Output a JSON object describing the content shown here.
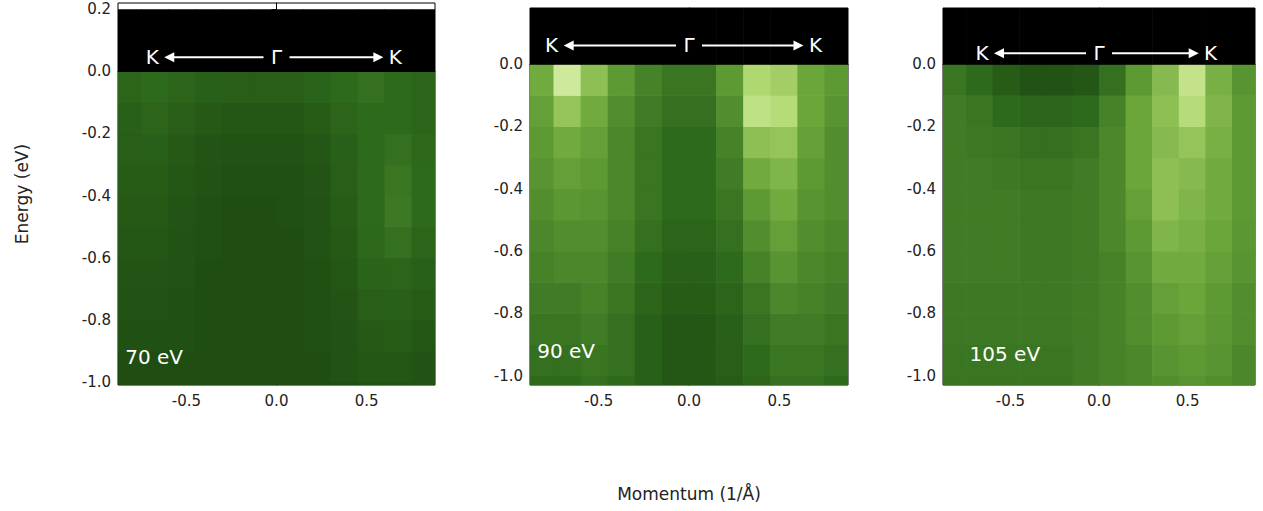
{
  "chart_data": [
    {
      "type": "heatmap",
      "ylabel": "Energy (eV)",
      "xlim": [
        -0.88,
        0.88
      ],
      "xticks": [
        -0.5,
        {
          "value": 0,
          "label": "0.0"
        },
        0.5
      ],
      "ylim": [
        -1.01,
        0.22
      ],
      "yticks": [
        {
          "value": -1,
          "label": "-1.0"
        },
        -0.8,
        -0.6,
        -0.4,
        -0.2,
        {
          "value": 0,
          "label": "0.0"
        },
        0.2
      ],
      "momentum_bins": [
        -0.9,
        -0.75,
        -0.6,
        -0.45,
        -0.3,
        -0.15,
        0,
        0.15,
        0.3,
        0.45,
        0.6,
        0.75,
        0.9
      ],
      "energy_bins": [
        -1.1,
        -1.0,
        -0.9,
        -0.8,
        -0.7,
        -0.6,
        -0.5,
        -0.4,
        -0.3,
        -0.2,
        -0.1,
        0.0,
        0.2
      ],
      "zlim": [
        0,
        100
      ],
      "intensity": [
        [
          28,
          28,
          28,
          28,
          28,
          28,
          28,
          28,
          28,
          30,
          30,
          30
        ],
        [
          28,
          28,
          28,
          28,
          28,
          28,
          28,
          28,
          30,
          32,
          32,
          30
        ],
        [
          29,
          29,
          29,
          28,
          28,
          28,
          28,
          29,
          30,
          33,
          34,
          32
        ],
        [
          30,
          30,
          29,
          28,
          28,
          28,
          28,
          29,
          31,
          35,
          36,
          34
        ],
        [
          31,
          31,
          30,
          28,
          28,
          28,
          28,
          29,
          32,
          37,
          38,
          36
        ],
        [
          32,
          32,
          30,
          29,
          28,
          28,
          28,
          30,
          33,
          39,
          42,
          38
        ],
        [
          33,
          33,
          31,
          29,
          28,
          28,
          29,
          30,
          34,
          40,
          45,
          40
        ],
        [
          34,
          34,
          32,
          30,
          29,
          29,
          29,
          31,
          35,
          40,
          44,
          40
        ],
        [
          35,
          36,
          33,
          31,
          30,
          30,
          30,
          32,
          36,
          40,
          42,
          39
        ],
        [
          36,
          38,
          35,
          33,
          32,
          32,
          32,
          34,
          38,
          40,
          40,
          38
        ],
        [
          38,
          40,
          38,
          36,
          35,
          35,
          35,
          37,
          40,
          42,
          40,
          38
        ],
        [
          0,
          0,
          0,
          0,
          0,
          0,
          0,
          0,
          0,
          0,
          0,
          0
        ]
      ],
      "annotations": [
        {
          "text": "K",
          "x": -0.69,
          "y": 0.045
        },
        {
          "text": "Γ",
          "x": 0,
          "y": 0.045
        },
        {
          "text": "K",
          "x": 0.66,
          "y": 0.045
        },
        {
          "text": "70 eV",
          "x": -0.84,
          "y": -0.92
        }
      ]
    },
    {
      "type": "heatmap",
      "xlabel": "Momentum (1/Å)",
      "xlim": [
        -0.88,
        0.88
      ],
      "xticks": [
        -0.5,
        {
          "value": 0,
          "label": "0.0"
        },
        0.5
      ],
      "ylim": [
        -1.03,
        0.18
      ],
      "yticks": [
        {
          "value": -1,
          "label": "-1.0"
        },
        -0.8,
        -0.6,
        -0.4,
        -0.2,
        {
          "value": 0,
          "label": "0.0"
        }
      ],
      "momentum_bins": [
        -0.9,
        -0.75,
        -0.6,
        -0.45,
        -0.3,
        -0.15,
        0,
        0.15,
        0.3,
        0.45,
        0.6,
        0.75,
        0.9
      ],
      "energy_bins": [
        -1.1,
        -1.0,
        -0.9,
        -0.8,
        -0.7,
        -0.6,
        -0.5,
        -0.4,
        -0.3,
        -0.2,
        -0.1,
        0.0,
        0.2
      ],
      "zlim": [
        0,
        100
      ],
      "intensity": [
        [
          40,
          40,
          42,
          40,
          36,
          32,
          32,
          34,
          38,
          42,
          42,
          40
        ],
        [
          42,
          42,
          44,
          42,
          36,
          32,
          32,
          35,
          40,
          44,
          44,
          42
        ],
        [
          44,
          44,
          46,
          42,
          36,
          32,
          32,
          36,
          42,
          46,
          46,
          44
        ],
        [
          46,
          46,
          48,
          44,
          38,
          34,
          34,
          38,
          44,
          50,
          48,
          46
        ],
        [
          48,
          50,
          50,
          46,
          40,
          36,
          36,
          40,
          48,
          54,
          50,
          48
        ],
        [
          50,
          52,
          52,
          48,
          42,
          38,
          38,
          42,
          52,
          58,
          52,
          50
        ],
        [
          52,
          55,
          54,
          50,
          44,
          40,
          40,
          44,
          56,
          62,
          54,
          52
        ],
        [
          54,
          58,
          56,
          50,
          44,
          40,
          40,
          46,
          62,
          66,
          56,
          52
        ],
        [
          56,
          62,
          58,
          50,
          44,
          40,
          40,
          48,
          70,
          72,
          58,
          52
        ],
        [
          58,
          72,
          62,
          52,
          46,
          42,
          42,
          52,
          85,
          82,
          60,
          54
        ],
        [
          62,
          90,
          70,
          56,
          48,
          44,
          44,
          56,
          80,
          76,
          60,
          56
        ],
        [
          0,
          0,
          0,
          0,
          0,
          0,
          0,
          0,
          0,
          0,
          0,
          0
        ]
      ],
      "annotations": [
        {
          "text": "K",
          "x": -0.76,
          "y": 0.06
        },
        {
          "text": "Γ",
          "x": 0,
          "y": 0.06
        },
        {
          "text": "K",
          "x": 0.7,
          "y": 0.06
        },
        {
          "text": "90 eV",
          "x": -0.84,
          "y": -0.92
        }
      ]
    },
    {
      "type": "heatmap",
      "xlim": [
        -0.88,
        0.88
      ],
      "xticks": [
        -0.5,
        {
          "value": 0,
          "label": "0.0"
        },
        0.5
      ],
      "ylim": [
        -1.03,
        0.18
      ],
      "yticks": [
        {
          "value": -1,
          "label": "-1.0"
        },
        -0.8,
        -0.6,
        -0.4,
        -0.2,
        {
          "value": 0,
          "label": "0.0"
        }
      ],
      "momentum_bins": [
        -0.9,
        -0.75,
        -0.6,
        -0.45,
        -0.3,
        -0.15,
        0,
        0.15,
        0.3,
        0.45,
        0.6,
        0.75,
        0.9
      ],
      "energy_bins": [
        -1.1,
        -1.0,
        -0.9,
        -0.8,
        -0.7,
        -0.6,
        -0.5,
        -0.4,
        -0.3,
        -0.2,
        -0.1,
        0.0,
        0.2
      ],
      "zlim": [
        0,
        100
      ],
      "intensity": [
        [
          44,
          44,
          44,
          44,
          44,
          46,
          48,
          50,
          52,
          54,
          52,
          50
        ],
        [
          44,
          44,
          44,
          44,
          44,
          46,
          48,
          50,
          54,
          56,
          54,
          50
        ],
        [
          45,
          45,
          45,
          45,
          45,
          46,
          48,
          52,
          56,
          58,
          55,
          52
        ],
        [
          45,
          45,
          45,
          45,
          45,
          46,
          48,
          52,
          58,
          60,
          56,
          52
        ],
        [
          46,
          46,
          46,
          45,
          45,
          46,
          48,
          54,
          62,
          62,
          58,
          54
        ],
        [
          46,
          46,
          46,
          45,
          45,
          46,
          50,
          56,
          66,
          64,
          60,
          55
        ],
        [
          46,
          46,
          46,
          45,
          45,
          46,
          50,
          58,
          70,
          66,
          62,
          56
        ],
        [
          46,
          46,
          45,
          44,
          44,
          46,
          50,
          60,
          70,
          68,
          62,
          56
        ],
        [
          46,
          45,
          44,
          42,
          42,
          44,
          50,
          60,
          68,
          72,
          64,
          56
        ],
        [
          46,
          44,
          40,
          38,
          38,
          40,
          48,
          60,
          70,
          82,
          66,
          56
        ],
        [
          44,
          40,
          34,
          30,
          30,
          32,
          42,
          56,
          68,
          86,
          64,
          54
        ],
        [
          0,
          0,
          0,
          0,
          0,
          0,
          0,
          0,
          0,
          0,
          0,
          0
        ]
      ],
      "annotations": [
        {
          "text": "K",
          "x": -0.66,
          "y": 0.035
        },
        {
          "text": "Γ",
          "x": 0,
          "y": 0.035
        },
        {
          "text": "K",
          "x": 0.63,
          "y": 0.035
        },
        {
          "text": "105 eV",
          "x": -0.73,
          "y": -0.93
        }
      ]
    }
  ]
}
